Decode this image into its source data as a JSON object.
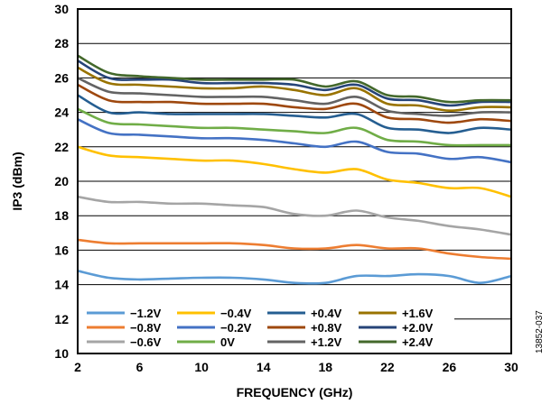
{
  "chart_data": {
    "type": "line",
    "title": "",
    "xlabel": "FREQUENCY (GHz)",
    "ylabel": "IP3 (dBm)",
    "xlim": [
      2,
      30
    ],
    "ylim": [
      10,
      30
    ],
    "xticks": [
      "2",
      "6",
      "10",
      "14",
      "18",
      "22",
      "26",
      "30"
    ],
    "yticks": [
      "10",
      "12",
      "14",
      "16",
      "18",
      "20",
      "22",
      "24",
      "26",
      "28",
      "30"
    ],
    "grid": "horizontal",
    "legend_position": "bottom-left",
    "x": [
      2,
      4,
      6,
      8,
      10,
      12,
      14,
      16,
      18,
      20,
      22,
      24,
      26,
      28,
      30
    ],
    "series": [
      {
        "name": "−1.2V",
        "color": "#5B9BD5",
        "values": [
          14.8,
          14.4,
          14.3,
          14.35,
          14.4,
          14.4,
          14.3,
          14.1,
          14.1,
          14.5,
          14.5,
          14.6,
          14.5,
          14.1,
          14.5
        ]
      },
      {
        "name": "−0.8V",
        "color": "#ED7D31",
        "values": [
          16.6,
          16.4,
          16.4,
          16.4,
          16.4,
          16.4,
          16.3,
          16.1,
          16.1,
          16.3,
          16.1,
          16.1,
          15.8,
          15.6,
          15.5
        ]
      },
      {
        "name": "−0.6V",
        "color": "#A5A5A5",
        "values": [
          19.1,
          18.8,
          18.8,
          18.7,
          18.7,
          18.6,
          18.5,
          18.1,
          18.0,
          18.3,
          17.9,
          17.7,
          17.4,
          17.2,
          16.9
        ]
      },
      {
        "name": "−0.4V",
        "color": "#FFC000",
        "values": [
          22.0,
          21.5,
          21.4,
          21.3,
          21.2,
          21.2,
          21.0,
          20.7,
          20.5,
          20.7,
          20.1,
          19.9,
          19.6,
          19.6,
          19.1
        ]
      },
      {
        "name": "−0.2V",
        "color": "#4472C4",
        "values": [
          23.6,
          22.8,
          22.7,
          22.6,
          22.5,
          22.5,
          22.4,
          22.2,
          22.0,
          22.3,
          21.7,
          21.6,
          21.3,
          21.4,
          21.1
        ]
      },
      {
        "name": "0V",
        "color": "#70AD47",
        "values": [
          24.2,
          23.4,
          23.3,
          23.2,
          23.1,
          23.1,
          23.0,
          22.9,
          22.8,
          23.1,
          22.4,
          22.3,
          22.1,
          22.1,
          22.1
        ]
      },
      {
        "name": "+0.4V",
        "color": "#255E91",
        "values": [
          25.0,
          24.0,
          24.0,
          23.9,
          23.9,
          23.9,
          23.9,
          23.8,
          23.7,
          23.9,
          23.1,
          23.0,
          22.8,
          23.1,
          23.0
        ]
      },
      {
        "name": "+0.8V",
        "color": "#9E480E",
        "values": [
          25.6,
          24.7,
          24.6,
          24.6,
          24.5,
          24.5,
          24.5,
          24.3,
          24.2,
          24.5,
          23.7,
          23.6,
          23.4,
          23.6,
          23.5
        ]
      },
      {
        "name": "+1.2V",
        "color": "#636363",
        "values": [
          26.0,
          25.2,
          25.1,
          25.0,
          24.9,
          24.9,
          24.9,
          24.7,
          24.5,
          24.9,
          24.1,
          23.9,
          23.8,
          24.0,
          24.0
        ]
      },
      {
        "name": "+1.6V",
        "color": "#997300",
        "values": [
          26.6,
          25.7,
          25.6,
          25.5,
          25.4,
          25.4,
          25.5,
          25.3,
          25.0,
          25.4,
          24.5,
          24.4,
          24.1,
          24.3,
          24.3
        ]
      },
      {
        "name": "+2.0V",
        "color": "#264478",
        "values": [
          27.0,
          26.0,
          25.9,
          25.9,
          25.7,
          25.7,
          25.7,
          25.6,
          25.3,
          25.6,
          24.8,
          24.7,
          24.4,
          24.6,
          24.6
        ]
      },
      {
        "name": "+2.4V",
        "color": "#43682B",
        "values": [
          27.3,
          26.3,
          26.1,
          26.0,
          25.9,
          25.9,
          25.9,
          25.9,
          25.5,
          25.8,
          25.0,
          24.9,
          24.6,
          24.7,
          24.7
        ]
      }
    ],
    "figure_id": "13852-037"
  }
}
